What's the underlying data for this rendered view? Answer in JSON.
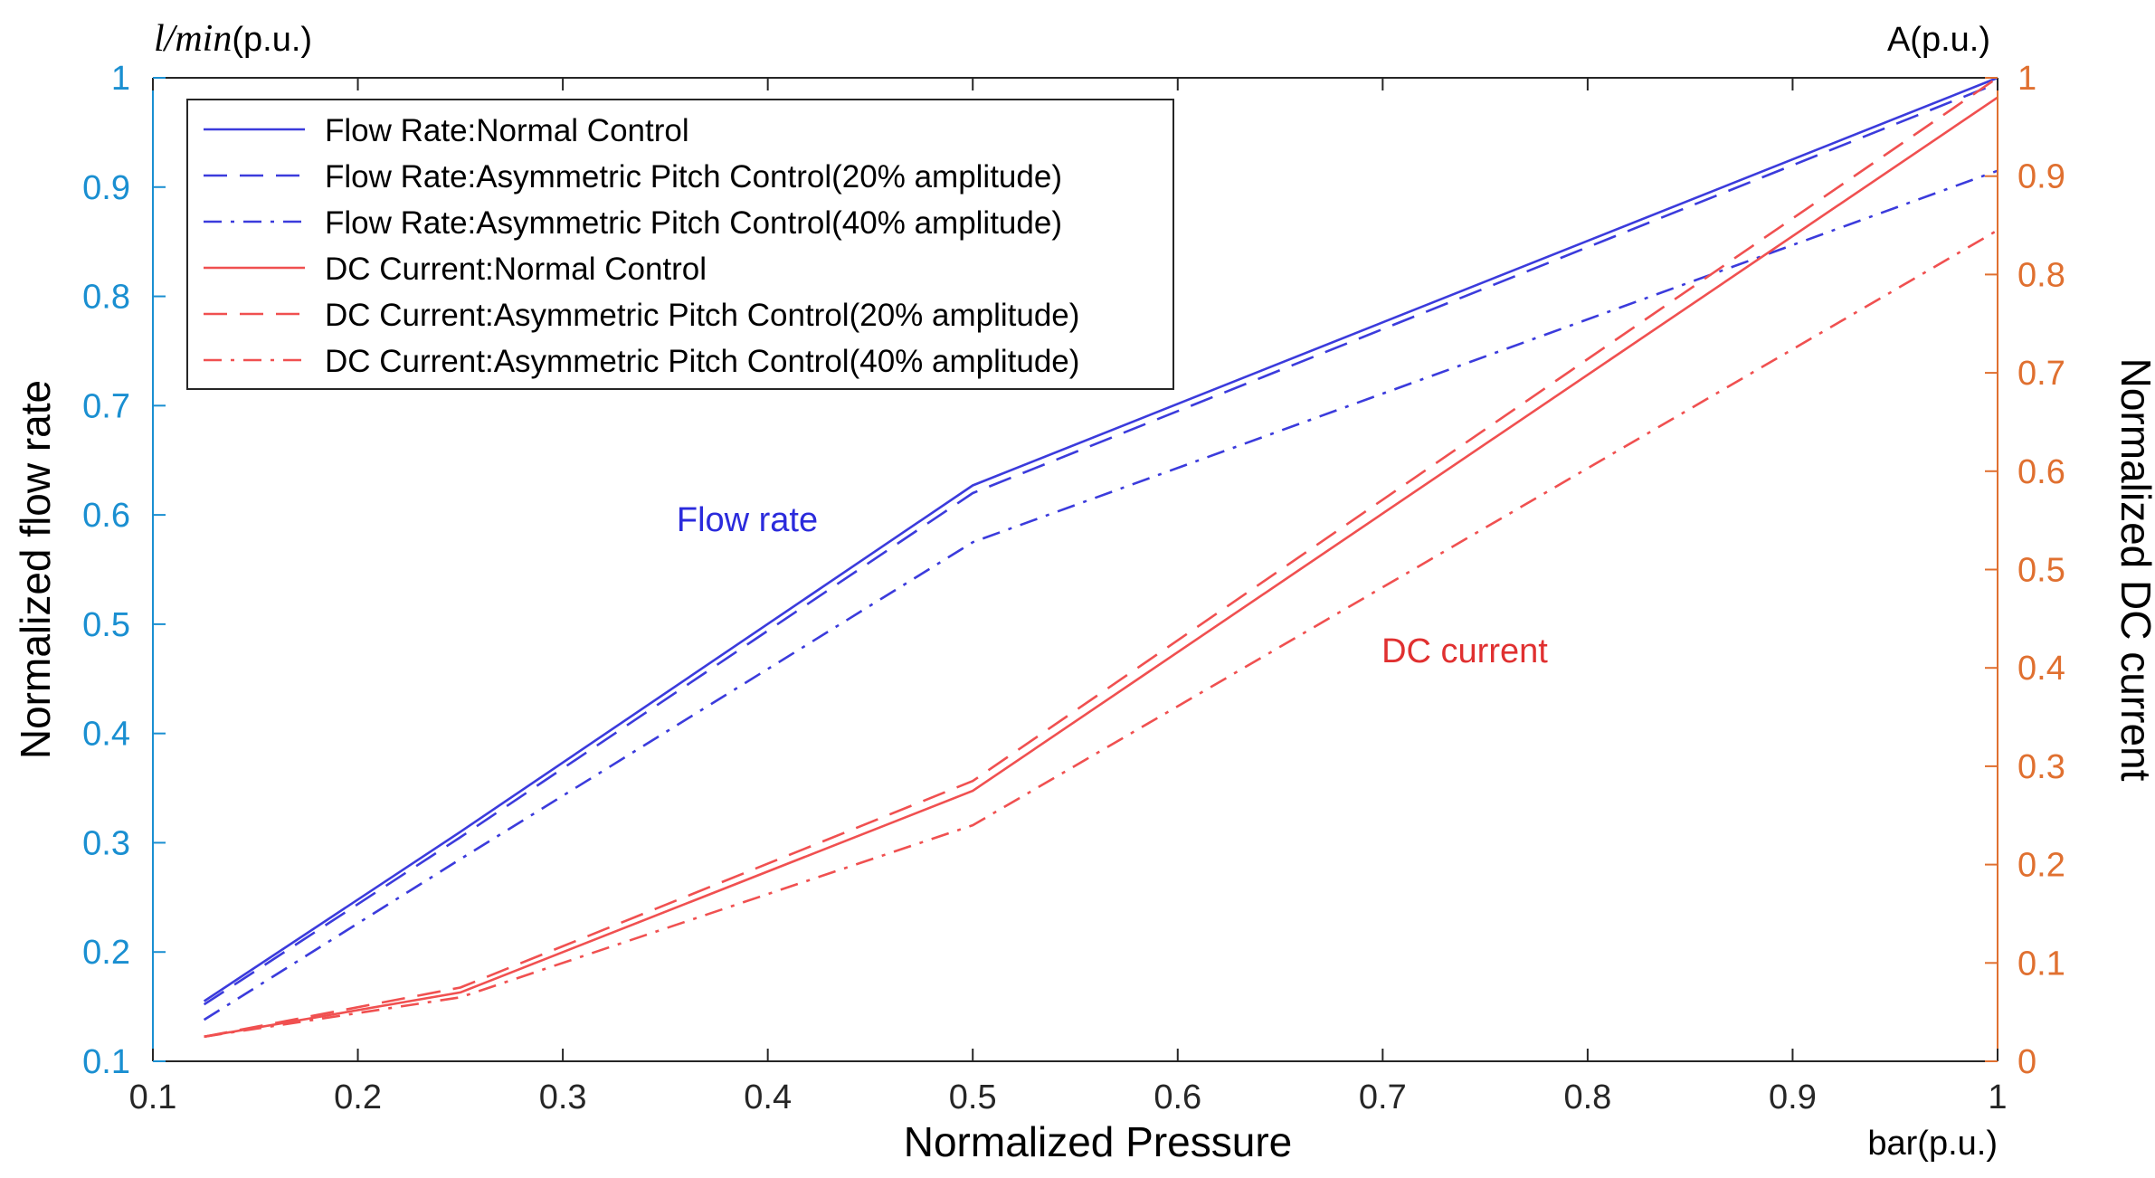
{
  "chart_data": {
    "type": "line",
    "xlabel": "Normalized Pressure",
    "x_unit": "bar(p.u.)",
    "xlim": [
      0.1,
      1
    ],
    "xticks": [
      "0.1",
      "0.2",
      "0.3",
      "0.4",
      "0.5",
      "0.6",
      "0.7",
      "0.8",
      "0.9",
      "1"
    ],
    "y_left": {
      "label": "Normalized flow rate",
      "unit_italic": "l/min",
      "unit_plain": "(p.u.)",
      "lim": [
        0.1,
        1
      ],
      "ticks": [
        "0.1",
        "0.2",
        "0.3",
        "0.4",
        "0.5",
        "0.6",
        "0.7",
        "0.8",
        "0.9",
        "1"
      ],
      "color": "#1a8fd1"
    },
    "y_right": {
      "label": "Normalized DC current",
      "unit": "A(p.u.)",
      "lim": [
        0,
        1
      ],
      "ticks": [
        "0",
        "0.1",
        "0.2",
        "0.3",
        "0.4",
        "0.5",
        "0.6",
        "0.7",
        "0.8",
        "0.9",
        "1"
      ],
      "color": "#e07030"
    },
    "series": [
      {
        "name": "Flow Rate:Normal Control",
        "axis": "left",
        "color": "#3b3bdc",
        "dash": "solid",
        "x": [
          0.125,
          0.25,
          0.5,
          1.0
        ],
        "y": [
          0.155,
          0.31,
          0.627,
          1.0
        ]
      },
      {
        "name": "Flow Rate:Asymmetric Pitch Control(20% amplitude)",
        "axis": "left",
        "color": "#3b3bdc",
        "dash": "dashed",
        "x": [
          0.125,
          0.25,
          0.5,
          1.0
        ],
        "y": [
          0.152,
          0.305,
          0.62,
          0.995
        ]
      },
      {
        "name": "Flow Rate:Asymmetric Pitch Control(40% amplitude)",
        "axis": "left",
        "color": "#3b3bdc",
        "dash": "dashdot",
        "x": [
          0.125,
          0.25,
          0.5,
          1.0
        ],
        "y": [
          0.138,
          0.285,
          0.575,
          0.915
        ]
      },
      {
        "name": "DC Current:Normal Control",
        "axis": "right",
        "color": "#f05050",
        "dash": "solid",
        "x": [
          0.125,
          0.25,
          0.5,
          1.0
        ],
        "y": [
          0.025,
          0.07,
          0.275,
          0.98
        ]
      },
      {
        "name": "DC Current:Asymmetric Pitch Control(20% amplitude)",
        "axis": "right",
        "color": "#f05050",
        "dash": "dashed",
        "x": [
          0.125,
          0.25,
          0.5,
          1.0
        ],
        "y": [
          0.025,
          0.075,
          0.285,
          1.0
        ]
      },
      {
        "name": "DC Current:Asymmetric Pitch Control(40% amplitude)",
        "axis": "right",
        "color": "#f05050",
        "dash": "dashdot",
        "x": [
          0.125,
          0.25,
          0.5,
          1.0
        ],
        "y": [
          0.025,
          0.065,
          0.24,
          0.845
        ]
      }
    ],
    "annotations": [
      {
        "text": "Flow rate",
        "color": "#2b2bdc",
        "axis": "left",
        "x": 0.39,
        "y": 0.585
      },
      {
        "text": "DC current",
        "color": "#e03030",
        "axis": "left",
        "x": 0.74,
        "y": 0.465
      }
    ],
    "legend": "top-left",
    "grid": false
  }
}
